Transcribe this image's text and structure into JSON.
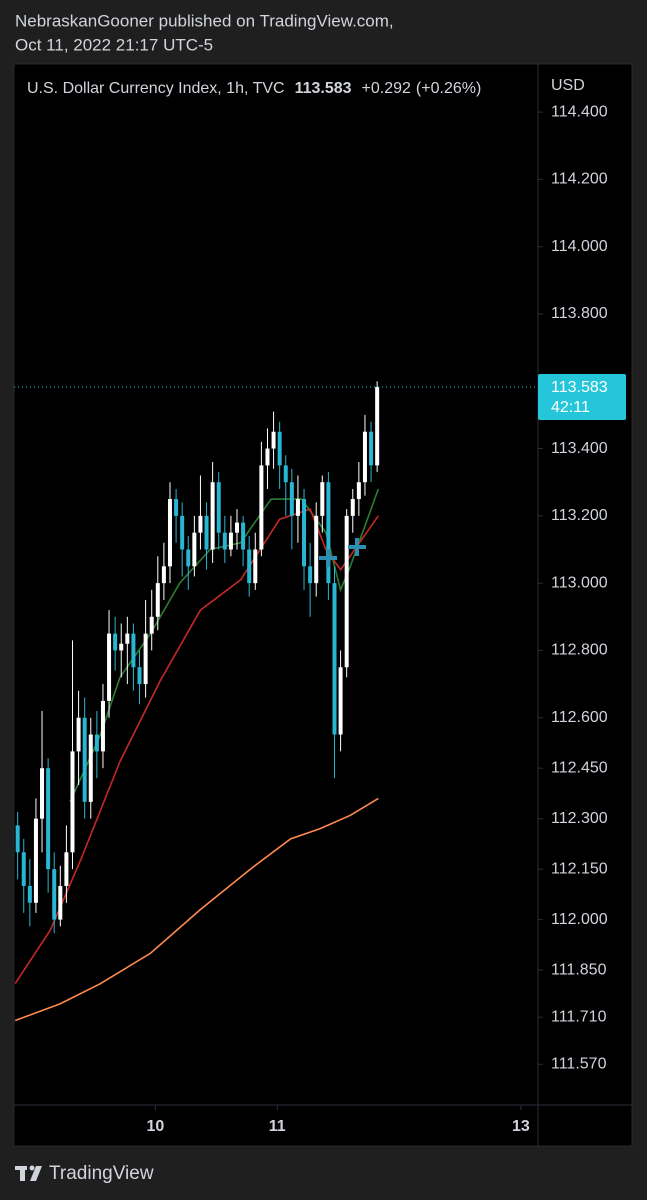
{
  "header": {
    "line1": "NebraskanGooner published on TradingView.com,",
    "line2": "Oct 11, 2022 21:17 UTC-5"
  },
  "chart_data": {
    "type": "candlestick",
    "title": "U.S. Dollar Currency Index, 1h, TVC",
    "last_price": 113.583,
    "change": "+0.292",
    "change_percent": "(+0.26%)",
    "countdown": "42:11",
    "y_axis_unit": "USD",
    "up_color": "#ffffff",
    "down_color": "#29b6d2",
    "x": [
      8.87,
      8.92,
      8.97,
      9.02,
      9.07,
      9.12,
      9.17,
      9.22,
      9.27,
      9.32,
      9.37,
      9.42,
      9.47,
      9.52,
      9.57,
      9.62,
      9.67,
      9.72,
      9.77,
      9.82,
      9.87,
      9.92,
      9.97,
      10.02,
      10.07,
      10.12,
      10.17,
      10.22,
      10.27,
      10.32,
      10.37,
      10.42,
      10.47,
      10.52,
      10.57,
      10.62,
      10.67,
      10.72,
      10.77,
      10.82,
      10.87,
      10.92,
      10.97,
      11.02,
      11.07,
      11.12,
      11.17,
      11.22,
      11.27,
      11.32,
      11.37,
      11.42,
      11.47,
      11.52,
      11.57,
      11.62,
      11.67,
      11.72,
      11.77,
      11.82
    ],
    "open": [
      112.28,
      112.2,
      112.1,
      112.05,
      112.3,
      112.45,
      112.15,
      112.0,
      112.1,
      112.2,
      112.5,
      112.6,
      112.35,
      112.55,
      112.5,
      112.65,
      112.85,
      112.8,
      112.82,
      112.85,
      112.75,
      112.7,
      112.85,
      112.9,
      113.0,
      113.05,
      113.25,
      113.2,
      113.1,
      113.05,
      113.15,
      113.2,
      113.1,
      113.3,
      113.15,
      113.1,
      113.15,
      113.18,
      113.1,
      113.0,
      113.1,
      113.35,
      113.4,
      113.45,
      113.35,
      113.3,
      113.2,
      113.25,
      113.05,
      113.0,
      113.2,
      113.3,
      113.0,
      112.55,
      112.75,
      113.2,
      113.25,
      113.3,
      113.45,
      113.35
    ],
    "high": [
      112.32,
      112.24,
      112.18,
      112.36,
      112.62,
      112.48,
      112.2,
      112.16,
      112.28,
      112.83,
      112.68,
      112.66,
      112.6,
      112.62,
      112.7,
      112.92,
      112.9,
      112.88,
      112.9,
      112.88,
      112.8,
      112.95,
      112.98,
      113.08,
      113.12,
      113.3,
      113.28,
      113.24,
      113.14,
      113.2,
      113.32,
      113.24,
      113.36,
      113.33,
      113.2,
      113.2,
      113.22,
      113.2,
      113.14,
      113.15,
      113.42,
      113.46,
      113.51,
      113.48,
      113.38,
      113.34,
      113.32,
      113.28,
      113.12,
      113.24,
      113.32,
      113.33,
      113.05,
      112.8,
      113.22,
      113.28,
      113.36,
      113.5,
      113.48,
      113.6
    ],
    "low": [
      112.12,
      112.02,
      111.98,
      112.02,
      112.2,
      112.08,
      111.96,
      111.98,
      112.05,
      112.15,
      112.4,
      112.3,
      112.3,
      112.42,
      112.45,
      112.6,
      112.74,
      112.72,
      112.7,
      112.68,
      112.64,
      112.66,
      112.8,
      112.86,
      112.95,
      113.0,
      113.12,
      113.02,
      112.98,
      113.02,
      113.1,
      113.04,
      113.06,
      113.1,
      113.06,
      113.08,
      113.1,
      113.05,
      112.96,
      112.98,
      113.08,
      113.28,
      113.34,
      113.28,
      113.2,
      113.1,
      113.12,
      112.98,
      112.9,
      112.96,
      113.15,
      112.95,
      112.42,
      112.5,
      112.72,
      113.15,
      113.2,
      113.26,
      113.3,
      113.33
    ],
    "close": [
      112.2,
      112.1,
      112.05,
      112.3,
      112.45,
      112.15,
      112.0,
      112.1,
      112.2,
      112.5,
      112.6,
      112.35,
      112.55,
      112.5,
      112.65,
      112.85,
      112.8,
      112.82,
      112.85,
      112.75,
      112.7,
      112.85,
      112.9,
      113.0,
      113.05,
      113.25,
      113.2,
      113.1,
      113.05,
      113.15,
      113.2,
      113.1,
      113.3,
      113.15,
      113.1,
      113.15,
      113.18,
      113.1,
      113.0,
      113.1,
      113.35,
      113.4,
      113.45,
      113.35,
      113.3,
      113.2,
      113.25,
      113.05,
      113.0,
      113.2,
      113.3,
      113.0,
      112.55,
      112.75,
      113.2,
      113.25,
      113.3,
      113.45,
      113.35,
      113.583
    ],
    "lines": [
      {
        "color": "#2e7d32",
        "x": [
          9.3,
          9.55,
          9.71,
          9.96,
          10.2,
          10.45,
          10.7,
          10.95,
          11.2,
          11.4,
          11.52,
          11.6,
          11.83
        ],
        "values": [
          112.35,
          112.55,
          112.72,
          112.85,
          113.0,
          113.1,
          113.12,
          113.25,
          113.25,
          113.15,
          112.98,
          113.05,
          113.28
        ]
      },
      {
        "color": "#c62828",
        "x": [
          8.85,
          9.14,
          9.39,
          9.71,
          10.04,
          10.37,
          10.7,
          11.02,
          11.27,
          11.4,
          11.52,
          11.83
        ],
        "values": [
          111.81,
          111.97,
          112.18,
          112.47,
          112.71,
          112.92,
          113.01,
          113.19,
          113.22,
          113.1,
          113.04,
          113.2
        ]
      },
      {
        "color": "#ff8a50",
        "x": [
          8.85,
          9.22,
          9.55,
          9.96,
          10.37,
          10.78,
          11.11,
          11.35,
          11.6,
          11.83
        ],
        "values": [
          111.7,
          111.75,
          111.81,
          111.9,
          112.03,
          112.15,
          112.24,
          112.27,
          112.31,
          112.36
        ]
      }
    ],
    "xlim": [
      8.84,
      13.14
    ],
    "xticks": [
      10,
      11,
      13
    ],
    "ylim": [
      111.449,
      114.537
    ],
    "yticks": [
      {
        "value": 114.4,
        "label": "114.400"
      },
      {
        "value": 114.2,
        "label": "114.200"
      },
      {
        "value": 114.0,
        "label": "114.000"
      },
      {
        "value": 113.8,
        "label": "113.800"
      },
      {
        "value": 113.4,
        "label": "113.400"
      },
      {
        "value": 113.2,
        "label": "113.200"
      },
      {
        "value": 113.0,
        "label": "113.000"
      },
      {
        "value": 112.8,
        "label": "112.800"
      },
      {
        "value": 112.6,
        "label": "112.600"
      },
      {
        "value": 112.45,
        "label": "112.450"
      },
      {
        "value": 112.3,
        "label": "112.300"
      },
      {
        "value": 112.15,
        "label": "112.150"
      },
      {
        "value": 112.0,
        "label": "112.000"
      },
      {
        "value": 111.85,
        "label": "111.850"
      },
      {
        "value": 111.71,
        "label": "111.710"
      },
      {
        "value": 111.57,
        "label": "111.570"
      }
    ]
  },
  "footer": {
    "brand": "TradingView"
  }
}
